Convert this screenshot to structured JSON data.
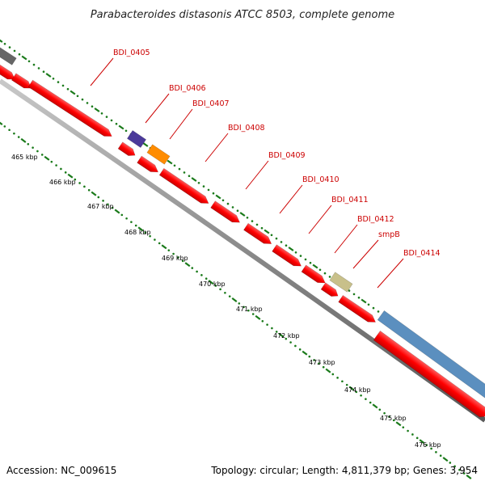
{
  "title": "Parabacteroides distasonis ATCC 8503, complete genome",
  "footer": {
    "accession": "Accession: NC_009615",
    "topology": "Topology: circular; Length: 4,811,379 bp; Genes: 3,954"
  },
  "colors": {
    "gene_red": "#ff0000",
    "backbone_gray": "#8a8a8a",
    "tick_green": "#1a7a1a",
    "label_red": "#cc0000",
    "purple": "#4b3a9a",
    "orange": "#ff8c00",
    "khaki": "#c8c08a",
    "steelblue": "#5b8fbf",
    "darkgray": "#666666"
  },
  "kbp_labels": [
    "465 kbp",
    "466 kbp",
    "467 kbp",
    "468 kbp",
    "469 kbp",
    "470 kbp",
    "471 kbp",
    "472 kbp",
    "473 kbp",
    "474 kbp",
    "475 kbp",
    "476 kbp"
  ],
  "gene_labels": [
    "BDI_0405",
    "BDI_0406",
    "BDI_0407",
    "BDI_0408",
    "BDI_0409",
    "BDI_0410",
    "BDI_0411",
    "BDI_0412",
    "smpB",
    "BDI_0414"
  ]
}
